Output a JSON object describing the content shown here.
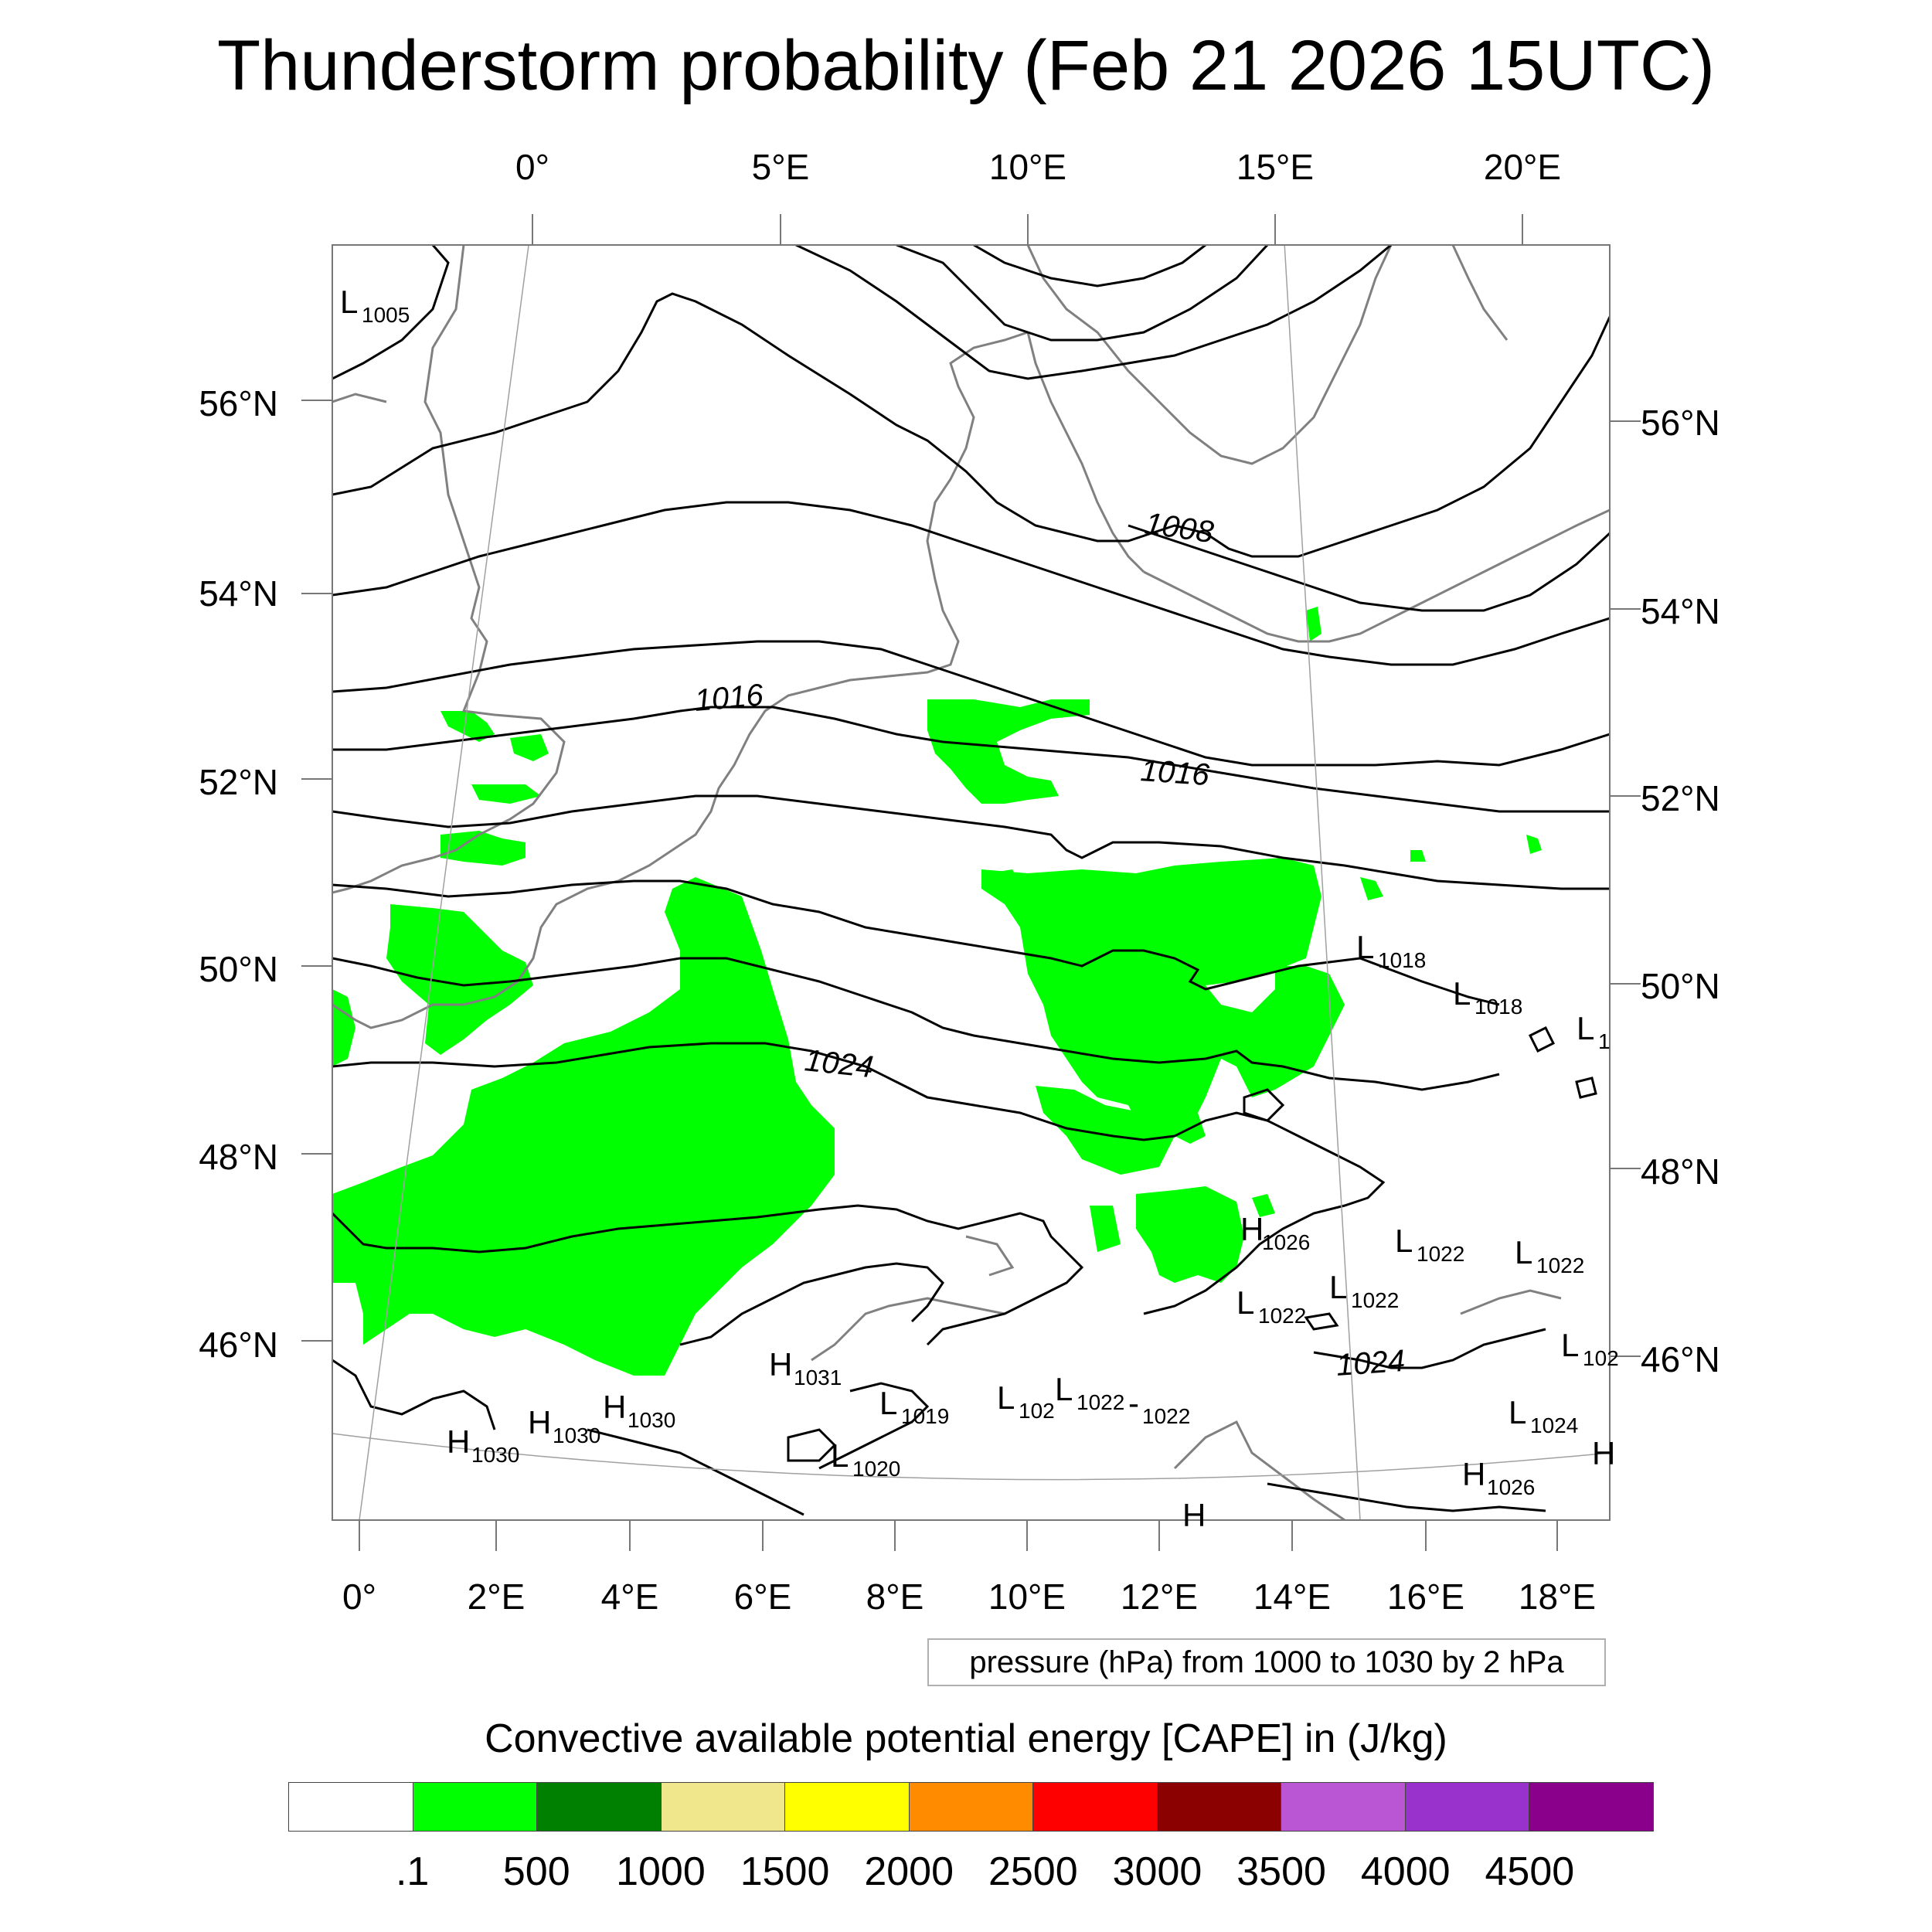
{
  "title": "Thunderstorm probability (Feb 21 2026 15UTC)",
  "top_lon_ticks": [
    "0°",
    "5°E",
    "10°E",
    "15°E",
    "20°E"
  ],
  "bottom_lon_ticks": [
    "0°",
    "2°E",
    "4°E",
    "6°E",
    "8°E",
    "10°E",
    "12°E",
    "14°E",
    "16°E",
    "18°E"
  ],
  "left_lat_ticks": [
    "56°N",
    "54°N",
    "52°N",
    "50°N",
    "48°N",
    "46°N"
  ],
  "right_lat_ticks": [
    "56°N",
    "54°N",
    "52°N",
    "50°N",
    "48°N",
    "46°N"
  ],
  "isobar_labels": [
    "1008",
    "1016",
    "1016",
    "1024",
    "1024"
  ],
  "pressure_centers": [
    {
      "letter": "L",
      "value": "1005"
    },
    {
      "letter": "L",
      "value": "1018"
    },
    {
      "letter": "L",
      "value": "1018"
    },
    {
      "letter": "L",
      "value": "1"
    },
    {
      "letter": "H",
      "value": "1026"
    },
    {
      "letter": "L",
      "value": "1022"
    },
    {
      "letter": "L",
      "value": "1022"
    },
    {
      "letter": "L",
      "value": "1022"
    },
    {
      "letter": "L",
      "value": "1022"
    },
    {
      "letter": "L",
      "value": "102"
    },
    {
      "letter": "H",
      "value": "1031"
    },
    {
      "letter": "H",
      "value": "1030"
    },
    {
      "letter": "H",
      "value": "1030"
    },
    {
      "letter": "H",
      "value": "1030"
    },
    {
      "letter": "L",
      "value": "1019"
    },
    {
      "letter": "L",
      "value": "102"
    },
    {
      "letter": "L",
      "value": "1022"
    },
    {
      "letter": "-",
      "value": "1022"
    },
    {
      "letter": "L",
      "value": "1020"
    },
    {
      "letter": "L",
      "value": "1024"
    },
    {
      "letter": "H",
      "value": "1026"
    },
    {
      "letter": "H",
      "value": ""
    },
    {
      "letter": "H",
      "value": ""
    }
  ],
  "pressure_note": "pressure (hPa) from 1000 to 1030 by 2 hPa",
  "colorbar": {
    "title": "Convective available potential energy [CAPE] in (J/kg)",
    "colors": [
      "#ffffff",
      "#00ff00",
      "#008000",
      "#f0e68c",
      "#ffff00",
      "#ff8c00",
      "#ff0000",
      "#8b0000",
      "#ba55d3",
      "#9932cc",
      "#8b008b"
    ],
    "labels": [
      ".1",
      "500",
      "1000",
      "1500",
      "2000",
      "2500",
      "3000",
      "3500",
      "4000",
      "4500"
    ]
  },
  "colors": {
    "cape_low": "#00ff00",
    "coast": "#808080",
    "isobar": "#000000",
    "grid": "#a0a0a0"
  }
}
